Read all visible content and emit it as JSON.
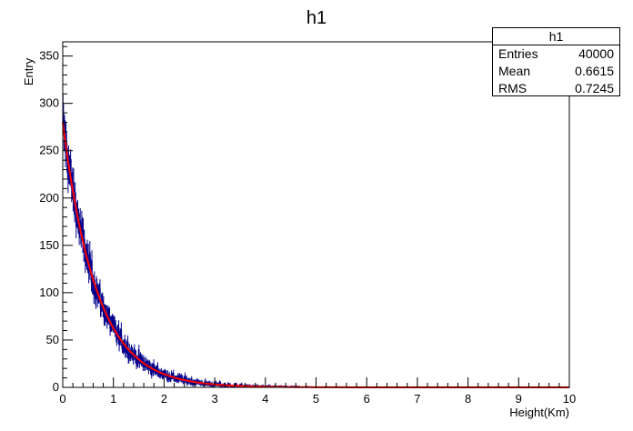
{
  "chart_data": {
    "type": "histogram",
    "title": "h1",
    "xlabel": "Height(Km)",
    "ylabel": "Entry",
    "xlim": [
      0,
      10
    ],
    "ylim": [
      0,
      365
    ],
    "x_ticks": [
      "0",
      "1",
      "2",
      "3",
      "4",
      "5",
      "6",
      "7",
      "8",
      "9",
      "10"
    ],
    "y_ticks": [
      "0",
      "50",
      "100",
      "150",
      "200",
      "250",
      "300",
      "350"
    ],
    "series": [
      {
        "kind": "histogram",
        "color": "#00008b",
        "bin_width": 0.01,
        "shape": "exponential",
        "y_at_0": 280,
        "decay_per_km": 1.5
      },
      {
        "kind": "fit",
        "color": "#ff0000",
        "function": "exponential",
        "y_at_0": 280,
        "decay_per_km": 1.5
      }
    ],
    "stats": {
      "title": "h1",
      "rows": [
        {
          "label": "Entries",
          "value": "40000"
        },
        {
          "label": "Mean",
          "value": "0.6615"
        },
        {
          "label": "RMS",
          "value": "0.7245"
        }
      ]
    },
    "grid": false
  }
}
